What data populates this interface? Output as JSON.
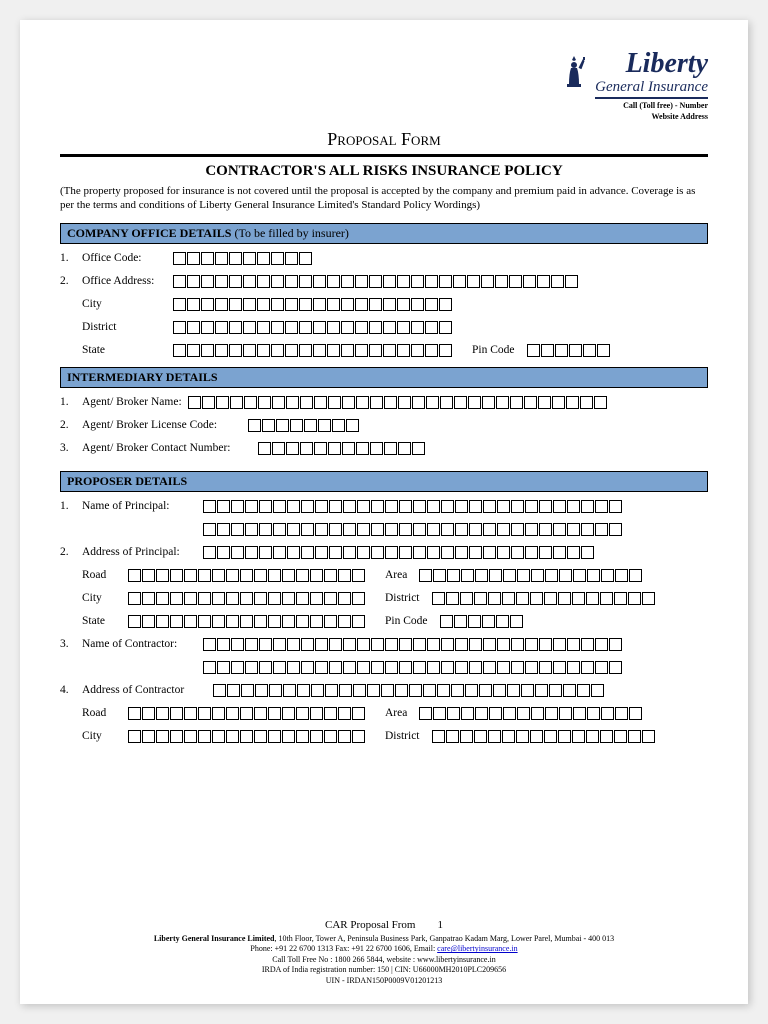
{
  "logo": {
    "main": "Liberty",
    "sub": "General Insurance",
    "contact1": "Call (Toll free) - Number",
    "contact2": "Website Address"
  },
  "form_title": "Proposal Form",
  "policy_title": "CONTRACTOR'S ALL RISKS INSURANCE POLICY",
  "disclaimer": "(The property proposed for insurance is not covered until the proposal is accepted by the company and premium paid in advance. Coverage is as per the terms and conditions of Liberty General Insurance Limited's Standard Policy Wordings)",
  "sections": {
    "company": {
      "title": "COMPANY OFFICE DETAILS",
      "note": "(To be filled by insurer)"
    },
    "intermediary": {
      "title": "INTERMEDIARY DETAILS"
    },
    "proposer": {
      "title": "PROPOSER DETAILS"
    }
  },
  "fields": {
    "office_code": {
      "num": "1.",
      "label": "Office Code:",
      "boxes": 10
    },
    "office_addr": {
      "num": "2.",
      "label": "Office Address:",
      "boxes": 29
    },
    "city": {
      "label": "City",
      "boxes": 20
    },
    "district": {
      "label": "District",
      "boxes": 20
    },
    "state": {
      "label": "State",
      "boxes": 20
    },
    "pincode": {
      "label": "Pin Code",
      "boxes": 6
    },
    "agent_name": {
      "num": "1.",
      "label": "Agent/ Broker Name:",
      "boxes": 30
    },
    "agent_license": {
      "num": "2.",
      "label": "Agent/ Broker License Code:",
      "boxes": 8
    },
    "agent_contact": {
      "num": "3.",
      "label": "Agent/ Broker Contact Number:",
      "boxes": 12
    },
    "principal_name": {
      "num": "1.",
      "label": "Name of Principal:",
      "boxes1": 30,
      "boxes2": 30
    },
    "principal_addr": {
      "num": "2.",
      "label": "Address of Principal:",
      "boxes": 28
    },
    "road": {
      "label": "Road",
      "boxes": 17
    },
    "area": {
      "label": "Area",
      "boxes": 16
    },
    "p_city": {
      "label": "City",
      "boxes": 17
    },
    "p_district": {
      "label": "District",
      "boxes": 16
    },
    "p_state": {
      "label": "State",
      "boxes": 17
    },
    "p_pincode": {
      "label": "Pin Code",
      "boxes": 6
    },
    "contractor_name": {
      "num": "3.",
      "label": "Name of Contractor:",
      "boxes1": 30,
      "boxes2": 30
    },
    "contractor_addr": {
      "num": "4.",
      "label": "Address of Contractor",
      "boxes": 28
    },
    "c_road": {
      "label": "Road",
      "boxes": 17
    },
    "c_area": {
      "label": "Area",
      "boxes": 16
    },
    "c_city": {
      "label": "City",
      "boxes": 17
    },
    "c_district": {
      "label": "District",
      "boxes": 16
    }
  },
  "footer": {
    "title": "CAR Proposal From",
    "page": "1",
    "line1a": "Liberty General Insurance Limited",
    "line1b": ", 10th Floor, Tower A, Peninsula Business Park, Ganpatrao Kadam Marg, Lower Parel, Mumbai - 400 013",
    "line2a": "Phone: +91 22 6700 1313 Fax: +91 22 6700 1606, Email: ",
    "line2b": "care@libertyinsurance.in",
    "line3": "Call Toll Free No : 1800 266 5844, website : www.libertyinsurance.in",
    "line4": "IRDA of India registration number: 150 | CIN: U66000MH2010PLC209656",
    "line5": "UIN - IRDAN150P0009V01201213"
  },
  "colors": {
    "section_bg": "#7ba3d0",
    "logo_color": "#1a2b5c"
  }
}
